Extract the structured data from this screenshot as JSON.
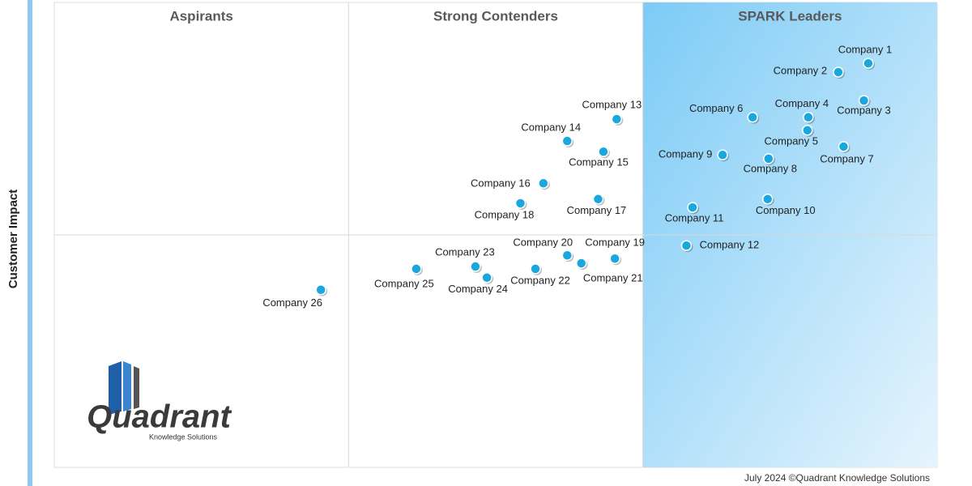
{
  "chart_data": {
    "type": "scatter",
    "ylabel": "Customer Impact",
    "zones": [
      "Aspirants",
      "Strong Contenders",
      "SPARK Leaders"
    ],
    "labels": [
      "Company 1",
      "Company 2",
      "Company 3",
      "Company 4",
      "Company 5",
      "Company 6",
      "Company 7",
      "Company 8",
      "Company 9",
      "Company 10",
      "Company 11",
      "Company 12",
      "Company 13",
      "Company 14",
      "Company 15",
      "Company 16",
      "Company 17",
      "Company 18",
      "Company 19",
      "Company 20",
      "Company 21",
      "Company 22",
      "Company 23",
      "Company 24",
      "Company 25",
      "Company 26"
    ],
    "x": [
      92.2,
      88.8,
      91.7,
      85.4,
      85.3,
      79.1,
      89.4,
      80.9,
      75.7,
      80.8,
      72.3,
      71.6,
      63.7,
      58.1,
      62.2,
      55.4,
      61.6,
      52.8,
      63.5,
      58.1,
      59.7,
      54.5,
      47.7,
      49.0,
      41.0,
      30.2
    ],
    "values": [
      86.9,
      85.0,
      78.9,
      75.3,
      72.5,
      75.3,
      69.0,
      66.4,
      67.2,
      57.7,
      55.9,
      47.7,
      74.9,
      70.2,
      67.9,
      61.1,
      57.7,
      56.8,
      44.9,
      45.6,
      43.9,
      42.7,
      43.2,
      40.8,
      42.7,
      38.2
    ],
    "color": "#1aa7dd",
    "xlim": [
      0,
      100
    ],
    "ylim": [
      0,
      100
    ]
  },
  "logo": {
    "name": "Quadrant",
    "tagline": "Knowledge Solutions"
  },
  "footer": "July 2024 ©Quadrant Knowledge Solutions"
}
